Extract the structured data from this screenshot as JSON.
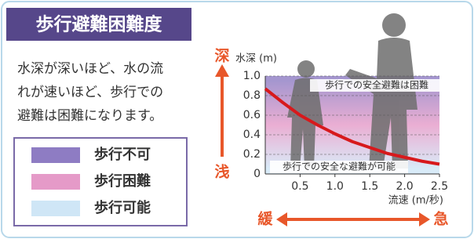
{
  "chart_data": {
    "type": "line",
    "title": "歩行避難困難度",
    "description": [
      "水深が深いほど、水の流",
      "れが速いほど、歩行での",
      "避難は困難になります。"
    ],
    "legend": [
      {
        "name": "歩行不可",
        "color": "#8e7cc3"
      },
      {
        "name": "歩行困難",
        "color": "#e59ac8"
      },
      {
        "name": "歩行可能",
        "color": "#cfe6f6"
      }
    ],
    "y_label": "水深 (m)",
    "x_label": "流速 (m/秒)",
    "ylim": [
      0,
      1.0
    ],
    "yticks": [
      0,
      0.2,
      0.4,
      0.6,
      0.8,
      {
        "value": 1,
        "label": "1.0"
      }
    ],
    "xlim": [
      0,
      2.5
    ],
    "xticks": [
      0.5,
      {
        "value": 1,
        "label": "1.0"
      },
      1.5,
      {
        "value": 2,
        "label": "2.0"
      },
      2.5
    ],
    "series": [
      {
        "color": "#d7191c",
        "x": [
          0,
          0.25,
          0.5,
          0.75,
          1,
          1.25,
          1.5,
          1.75,
          2,
          2.25,
          2.5
        ],
        "values": [
          0.87,
          0.73,
          0.6,
          0.5,
          0.41,
          0.33,
          0.27,
          0.21,
          0.17,
          0.13,
          0.1
        ]
      }
    ],
    "annotations": [
      "歩行での安全避難は困難",
      "歩行での安全な避難が可能"
    ],
    "depth_arrow": [
      "深",
      "浅"
    ],
    "speed_arrow": [
      "緩",
      "急"
    ]
  }
}
